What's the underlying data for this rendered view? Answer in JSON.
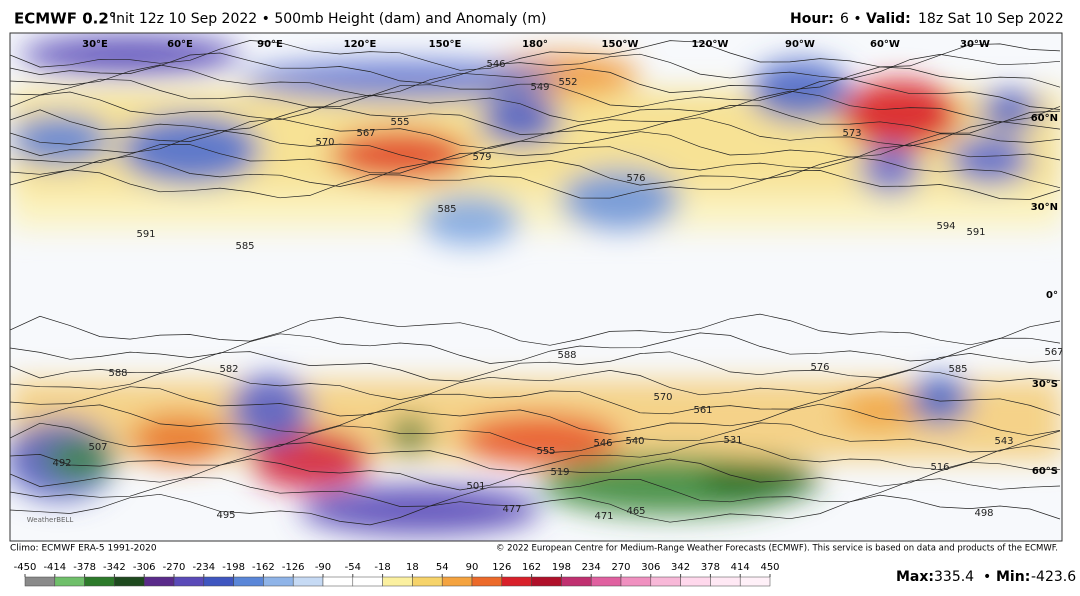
{
  "header": {
    "model": "ECMWF 0.2°",
    "title": "Init 12z 10 Sep 2022 • 500mb Height (dam) and Anomaly (m)",
    "hour_label": "Hour:",
    "hour": "6 •",
    "valid_label": "Valid:",
    "valid": "18z Sat 10 Sep 2022"
  },
  "map": {
    "lon_labels": [
      "30°E",
      "60°E",
      "90°E",
      "120°E",
      "150°E",
      "180°",
      "150°W",
      "120°W",
      "90°W",
      "60°W",
      "30°W"
    ],
    "lat_labels": [
      "60°N",
      "30°N",
      "0°",
      "30°S",
      "60°S"
    ],
    "contour_labels": [
      546,
      552,
      549,
      555,
      567,
      570,
      576,
      579,
      585,
      591,
      585,
      594,
      591,
      588,
      582,
      567,
      588,
      570,
      561,
      576,
      585,
      555,
      540,
      546,
      531,
      516,
      543,
      498,
      495,
      477,
      471,
      465,
      492,
      507,
      519,
      501,
      573
    ],
    "watermark": "WeatherBELL"
  },
  "footer": {
    "climo": "Climo: ECMWF ERA-5 1991-2020",
    "copyright": "© 2022 European Centre for Medium-Range Weather Forecasts (ECMWF). This service is based on data and products of the ECMWF.",
    "max_label": "Max:",
    "max": 335.4,
    "sep": "•",
    "min_label": "Min:",
    "min": -423.6
  },
  "colorbar": {
    "ticks": [
      -450,
      -414,
      -378,
      -342,
      -306,
      -270,
      -234,
      -198,
      -162,
      -126,
      -90,
      -54,
      -18,
      18,
      54,
      90,
      126,
      162,
      198,
      234,
      270,
      306,
      342,
      378,
      414,
      450
    ]
  }
}
